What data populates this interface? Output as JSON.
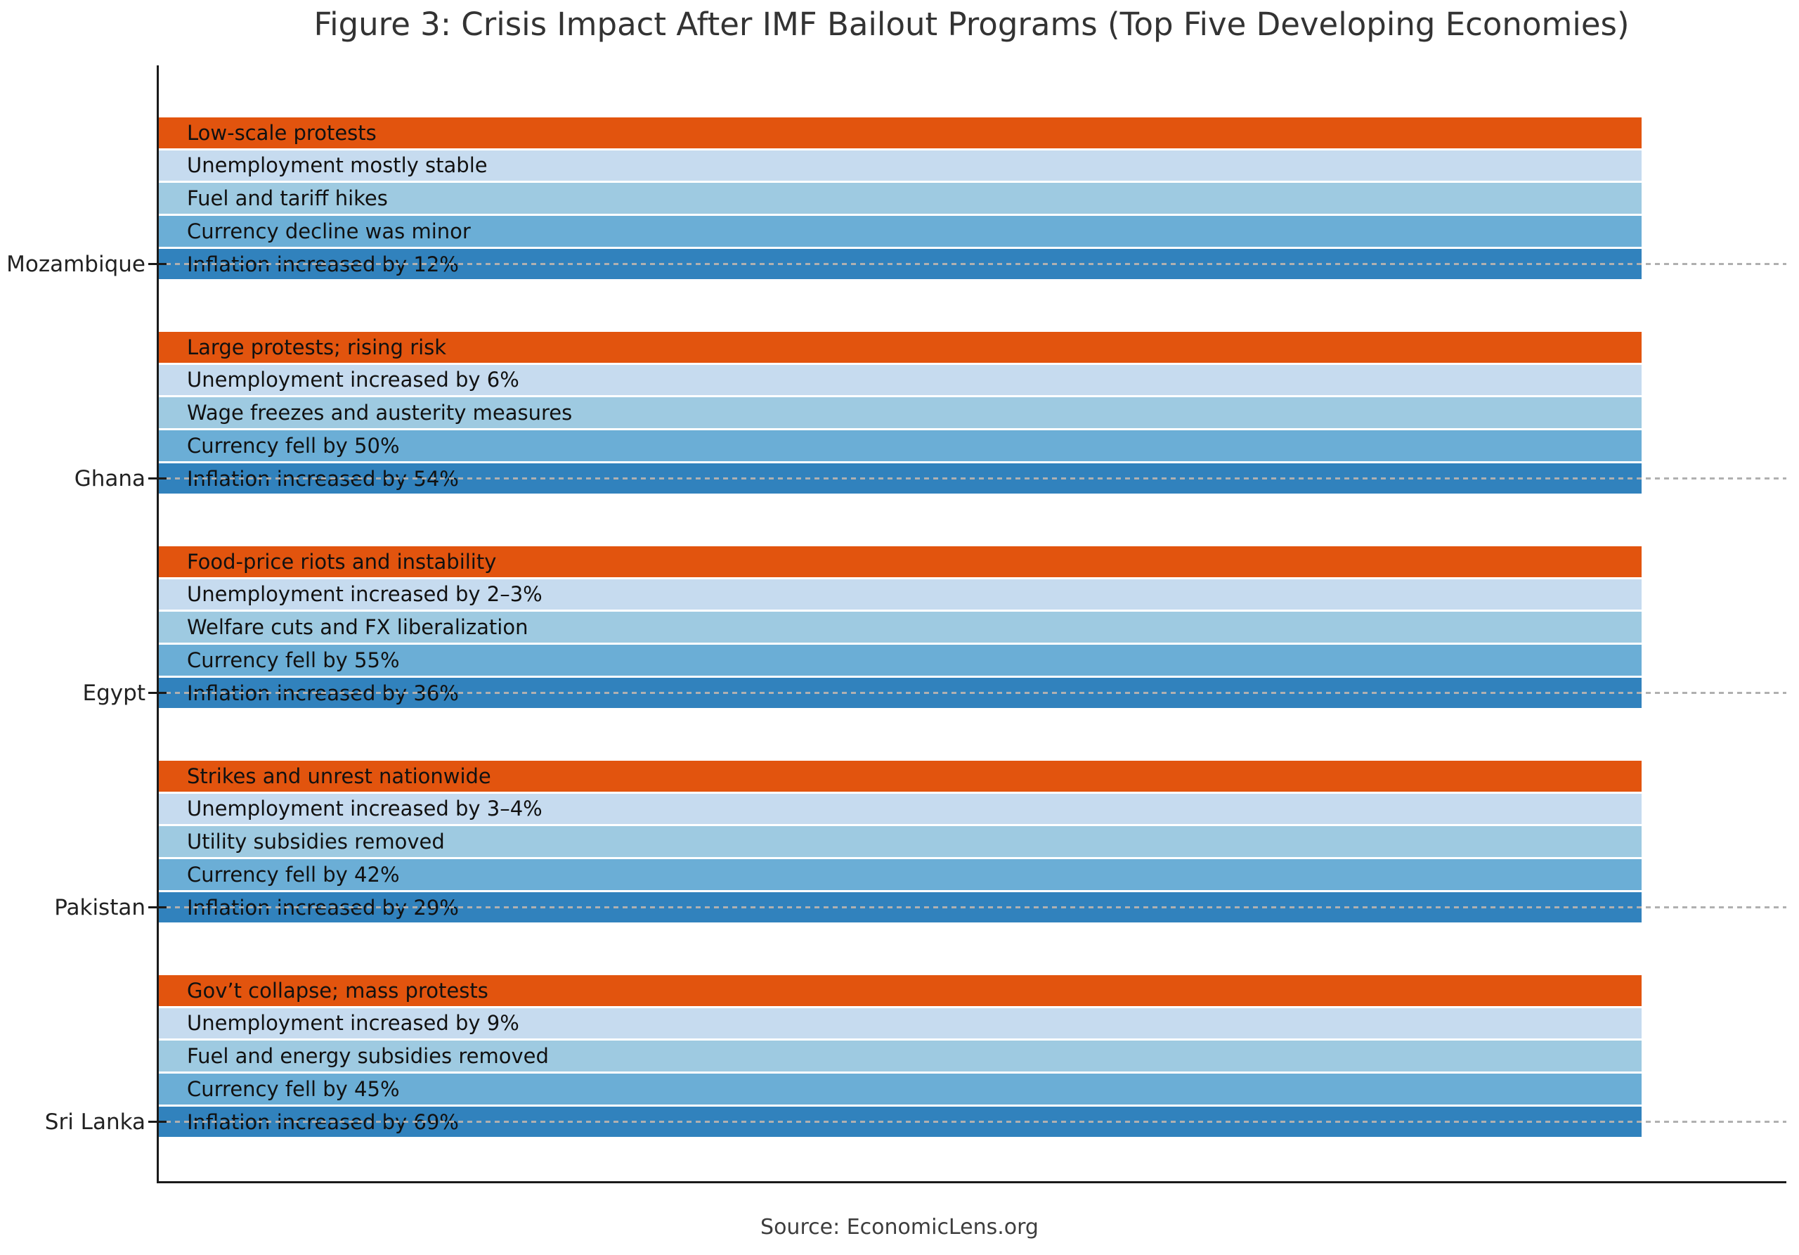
{
  "title": "Figure 3: Crisis Impact After IMF Bailout Programs (Top Five Developing Economies)",
  "source_caption": "Source: EconomicLens.org",
  "palette": {
    "unrest_orange": "#E2540E",
    "blue_lightest": "#C6DBEF",
    "blue_light": "#9ECAE1",
    "blue_medium": "#6BAED6",
    "blue_dark": "#3182BD",
    "axis_color": "#1a1a1a",
    "gridline_color": "#b0b0b0",
    "title_color": "#333333",
    "bar_text_color": "#111111"
  },
  "chart_data": {
    "type": "bar",
    "orientation": "horizontal",
    "bar_length": "uniform",
    "legend_position": "none",
    "grid": "dashed horizontal gridline at each country tick, drawn across full plot width",
    "title": "Figure 3: Crisis Impact After IMF Bailout Programs (Top Five Developing Economies)",
    "xlabel": "",
    "ylabel": "",
    "categories": [
      "Mozambique",
      "Ghana",
      "Egypt",
      "Pakistan",
      "Sri Lanka"
    ],
    "groups": [
      {
        "country": "Mozambique",
        "bars": [
          {
            "label": "Low-scale protests",
            "color": "#E2540E"
          },
          {
            "label": "Unemployment mostly stable",
            "color": "#C6DBEF"
          },
          {
            "label": "Fuel and tariff hikes",
            "color": "#9ECAE1"
          },
          {
            "label": "Currency decline was minor",
            "color": "#6BAED6"
          },
          {
            "label": "Inflation increased by 12%",
            "color": "#3182BD"
          }
        ]
      },
      {
        "country": "Ghana",
        "bars": [
          {
            "label": "Large protests; rising risk",
            "color": "#E2540E"
          },
          {
            "label": "Unemployment increased by 6%",
            "color": "#C6DBEF"
          },
          {
            "label": "Wage freezes and austerity measures",
            "color": "#9ECAE1"
          },
          {
            "label": "Currency fell by 50%",
            "color": "#6BAED6"
          },
          {
            "label": "Inflation increased by 54%",
            "color": "#3182BD"
          }
        ]
      },
      {
        "country": "Egypt",
        "bars": [
          {
            "label": "Food-price riots and instability",
            "color": "#E2540E"
          },
          {
            "label": "Unemployment increased by 2–3%",
            "color": "#C6DBEF"
          },
          {
            "label": "Welfare cuts and FX liberalization",
            "color": "#9ECAE1"
          },
          {
            "label": "Currency fell by 55%",
            "color": "#6BAED6"
          },
          {
            "label": "Inflation increased by 36%",
            "color": "#3182BD"
          }
        ]
      },
      {
        "country": "Pakistan",
        "bars": [
          {
            "label": "Strikes and unrest nationwide",
            "color": "#E2540E"
          },
          {
            "label": "Unemployment increased by 3–4%",
            "color": "#C6DBEF"
          },
          {
            "label": "Utility subsidies removed",
            "color": "#9ECAE1"
          },
          {
            "label": "Currency fell by 42%",
            "color": "#6BAED6"
          },
          {
            "label": "Inflation increased by 29%",
            "color": "#3182BD"
          }
        ]
      },
      {
        "country": "Sri Lanka",
        "bars": [
          {
            "label": "Gov’t collapse; mass protests",
            "color": "#E2540E"
          },
          {
            "label": "Unemployment increased by 9%",
            "color": "#C6DBEF"
          },
          {
            "label": "Fuel and energy subsidies removed",
            "color": "#9ECAE1"
          },
          {
            "label": "Currency fell by 45%",
            "color": "#6BAED6"
          },
          {
            "label": "Inflation increased by 69%",
            "color": "#3182BD"
          }
        ]
      }
    ]
  }
}
